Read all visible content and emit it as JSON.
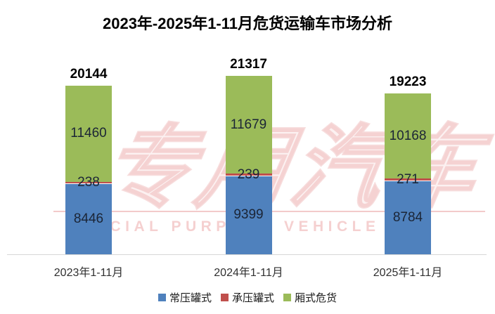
{
  "title": "2023年-2025年1-11月危货运输车市场分析",
  "watermark": {
    "logo_text": "专用汽车",
    "subtitle": "SPECIAL PURPOSE VEHICLE"
  },
  "chart_data": {
    "type": "bar",
    "stacked": true,
    "title": "2023年-2025年1-11月危货运输车市场分析",
    "categories": [
      "2023年1-11月",
      "2024年1-11月",
      "2025年1-11月"
    ],
    "series": [
      {
        "name": "常压罐式",
        "color": "#4F81BD",
        "values": [
          8446,
          9399,
          8784
        ]
      },
      {
        "name": "承压罐式",
        "color": "#C0504D",
        "values": [
          238,
          239,
          271
        ]
      },
      {
        "name": "厢式危货",
        "color": "#9BBB59",
        "values": [
          11460,
          11679,
          10168
        ]
      }
    ],
    "totals": [
      20144,
      21317,
      19223
    ],
    "xlabel": "",
    "ylabel": "",
    "ylim": [
      0,
      21317
    ],
    "grid": false,
    "legend_position": "bottom",
    "label_color": "#1b2536",
    "axis_line_color": "#d6d6d6"
  }
}
